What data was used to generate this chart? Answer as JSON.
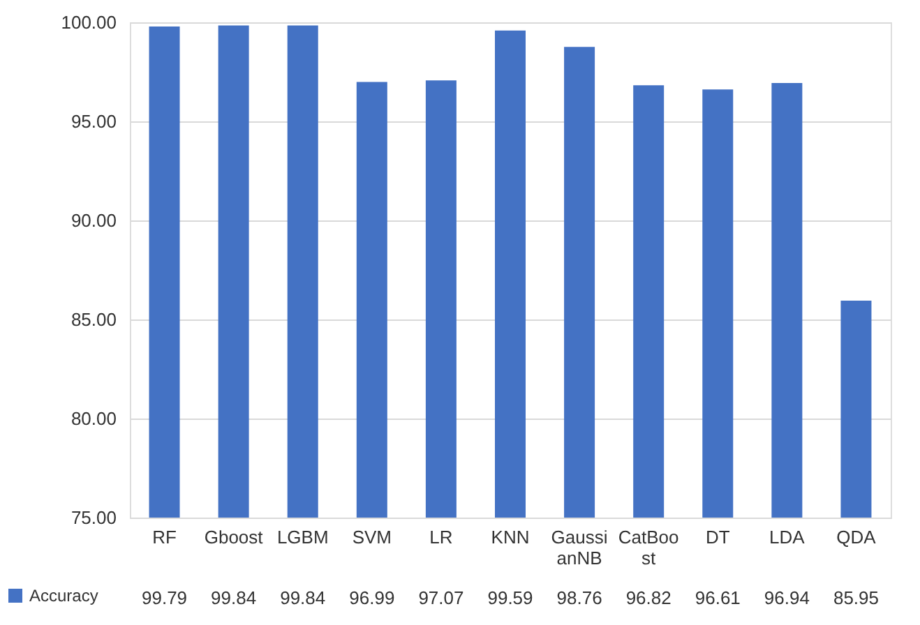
{
  "chart_data": {
    "type": "bar",
    "categories": [
      "RF",
      "Gboost",
      "LGBM",
      "SVM",
      "LR",
      "KNN",
      "GaussianNB",
      "CatBoost",
      "DT",
      "LDA",
      "QDA"
    ],
    "series": [
      {
        "name": "Accuracy",
        "color": "#4472c4",
        "values": [
          99.79,
          99.84,
          99.84,
          96.99,
          97.07,
          99.59,
          98.76,
          96.82,
          96.61,
          96.94,
          85.95
        ]
      }
    ],
    "ylim": [
      75,
      100
    ],
    "yticks": [
      {
        "value": 75,
        "label": "75.00"
      },
      {
        "value": 80,
        "label": "80.00"
      },
      {
        "value": 85,
        "label": "85.00"
      },
      {
        "value": 90,
        "label": "90.00"
      },
      {
        "value": 95,
        "label": "95.00"
      },
      {
        "value": 100,
        "label": "100.00"
      }
    ],
    "grid": "y",
    "legend": "bottom left",
    "data_labels": true
  }
}
